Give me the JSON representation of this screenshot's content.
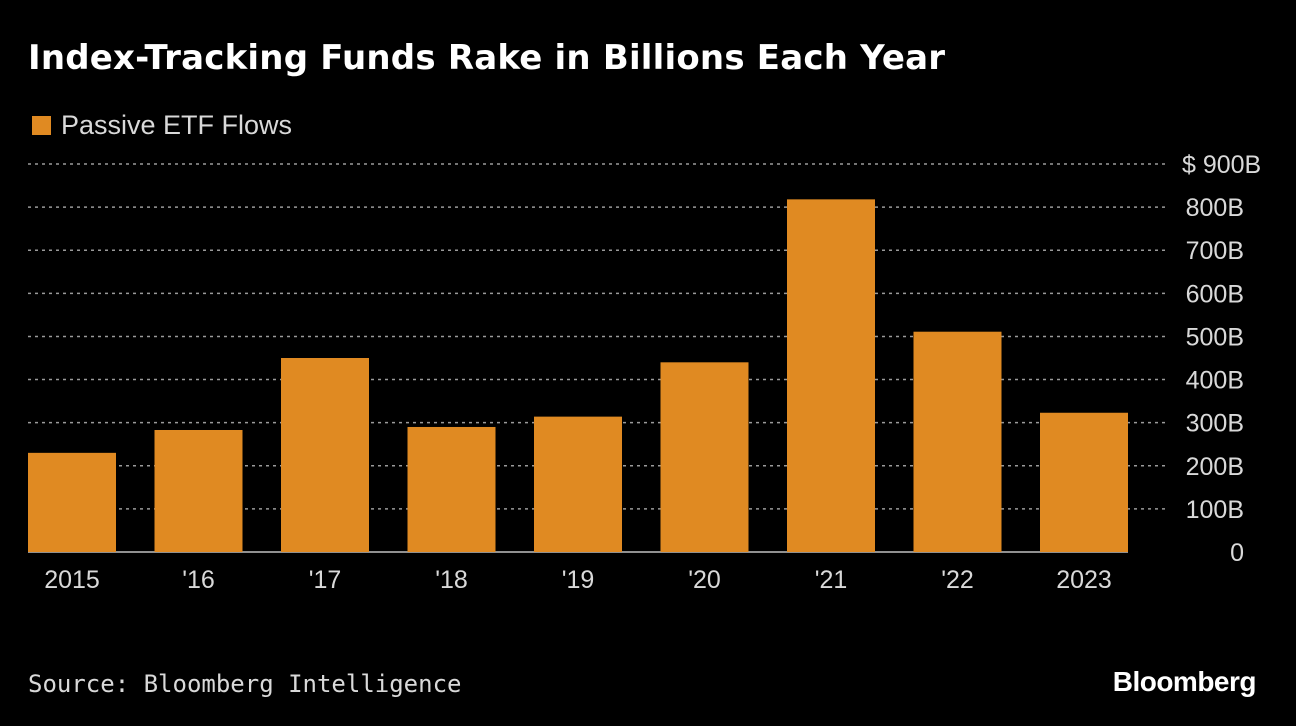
{
  "title": "Index-Tracking Funds Rake in Billions Each Year",
  "source": "Source: Bloomberg Intelligence",
  "logo": "Bloomberg",
  "colors": {
    "background": "#000000",
    "bar": "#e08a22",
    "grid": "#9a9a9a",
    "text": "#d9d9d9"
  },
  "chart_data": {
    "type": "bar",
    "categories": [
      "2015",
      "'16",
      "'17",
      "'18",
      "'19",
      "'20",
      "'21",
      "'22",
      "2023"
    ],
    "series": [
      {
        "name": "Passive ETF Flows",
        "values": [
          230,
          283,
          450,
          290,
          314,
          440,
          818,
          511,
          323
        ]
      }
    ],
    "ylim": [
      0,
      900
    ],
    "yticks": [
      0,
      100,
      200,
      300,
      400,
      500,
      600,
      700,
      800,
      900
    ],
    "ytick_labels": [
      "0",
      "100B",
      "200B",
      "300B",
      "400B",
      "500B",
      "600B",
      "700B",
      "800B",
      "$ 900B"
    ],
    "unit": "B",
    "grid": true,
    "legend_position": "top-left",
    "xlabel": "",
    "ylabel": ""
  }
}
